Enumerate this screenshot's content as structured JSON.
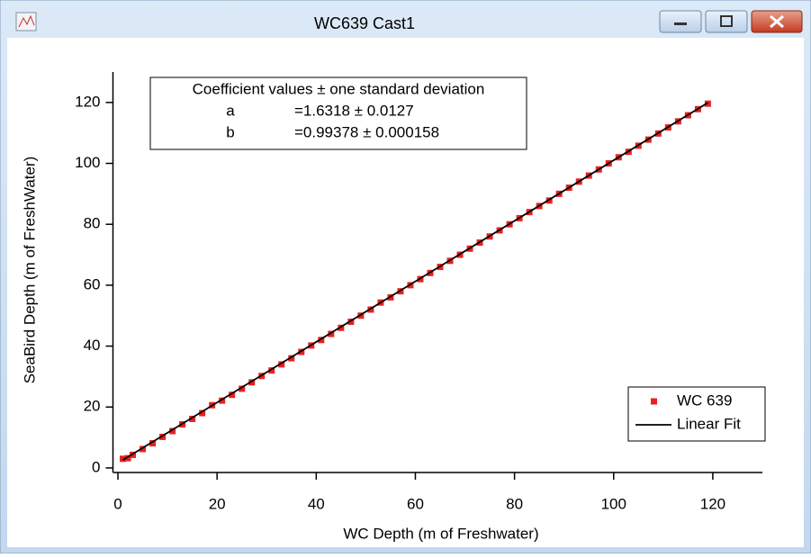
{
  "window": {
    "title": "WC639 Cast1"
  },
  "chart_data": {
    "type": "scatter",
    "xlabel": "WC Depth (m of Freshwater)",
    "ylabel": "SeaBird Depth (m of FreshWater)",
    "xlim": [
      -1,
      130
    ],
    "ylim": [
      -1.5,
      130
    ],
    "xticks": [
      0,
      20,
      40,
      60,
      80,
      100,
      120
    ],
    "yticks": [
      0,
      20,
      40,
      60,
      80,
      100,
      120
    ],
    "legend": "lower right",
    "annotation": {
      "title": "Coefficient values ± one standard deviation",
      "rows": [
        [
          "a",
          "=1.6318 ± 0.0127"
        ],
        [
          "b",
          "=0.99378 ± 0.000158"
        ]
      ]
    },
    "series": [
      {
        "name": "WC 639",
        "color": "#e8211f",
        "mode": "markers",
        "x": [
          1,
          2,
          3,
          5,
          7,
          9,
          11,
          13,
          15,
          17,
          19,
          21,
          23,
          25,
          27,
          29,
          31,
          33,
          35,
          37,
          39,
          41,
          43,
          45,
          47,
          49,
          51,
          53,
          55,
          57,
          59,
          61,
          63,
          65,
          67,
          69,
          71,
          73,
          75,
          77,
          79,
          81,
          83,
          85,
          87,
          89,
          91,
          93,
          95,
          97,
          99,
          101,
          103,
          105,
          107,
          109,
          111,
          113,
          115,
          117,
          119
        ],
        "values": [
          3,
          3.2,
          4.3,
          6.2,
          8.1,
          10.2,
          12.1,
          14.3,
          16.1,
          18,
          20.6,
          22.1,
          24,
          26,
          28.1,
          30.2,
          32,
          34,
          36,
          38.1,
          40.2,
          42,
          44,
          46,
          48,
          50,
          52,
          54.3,
          56,
          58,
          60,
          62,
          64,
          66,
          68,
          70,
          72,
          74,
          76,
          78,
          80,
          82,
          84,
          86,
          87.8,
          90,
          92,
          94,
          96,
          98,
          100,
          102,
          103.8,
          105.8,
          107.8,
          109.8,
          111.8,
          113.8,
          115.8,
          117.8,
          119.6
        ]
      },
      {
        "name": "Linear Fit",
        "color": "#000000",
        "mode": "line",
        "x": [
          1,
          119
        ],
        "values": [
          2.6,
          119.9
        ]
      }
    ]
  }
}
